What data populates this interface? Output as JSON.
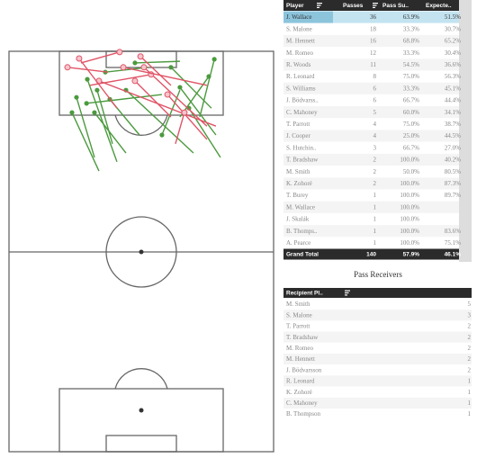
{
  "chart_data": {
    "type": "pass_map",
    "colors": {
      "success": "#4b9a3e",
      "fail": "#e05467"
    },
    "passes": [
      {
        "x": [
          77.6,
          72.1
        ],
        "y": [
          2.0,
          16.4
        ],
        "outcome": "success"
      },
      {
        "x": [
          36.4,
          52.7
        ],
        "y": [
          5.2,
          4.0
        ],
        "outcome": "success"
      },
      {
        "x": [
          29.6,
          40.8
        ],
        "y": [
          7.0,
          27.6
        ],
        "outcome": "success"
      },
      {
        "x": [
          23.8,
          34.0
        ],
        "y": [
          15.3,
          29.9
        ],
        "outcome": "success"
      },
      {
        "x": [
          25.5,
          32.3
        ],
        "y": [
          11.5,
          26.5
        ],
        "outcome": "success"
      },
      {
        "x": [
          33.3,
          39.1
        ],
        "y": [
          9.7,
          23.1
        ],
        "outcome": "success"
      },
      {
        "x": [
          38.1,
          49.3
        ],
        "y": [
          12.0,
          20.9
        ],
        "outcome": "success"
      },
      {
        "x": [
          68.0,
          79.9
        ],
        "y": [
          14.2,
          26.5
        ],
        "outcome": "success"
      },
      {
        "x": [
          61.2,
          76.5
        ],
        "y": [
          4.0,
          14.2
        ],
        "outcome": "success"
      },
      {
        "x": [
          47.6,
          64.6
        ],
        "y": [
          2.9,
          2.5
        ],
        "outcome": "success"
      },
      {
        "x": [
          29.3,
          57.8
        ],
        "y": [
          13.0,
          10.8
        ],
        "outcome": "success"
      },
      {
        "x": [
          57.8,
          64.6
        ],
        "y": [
          20.9,
          9.7
        ],
        "outcome": "success"
      },
      {
        "x": [
          75.5,
          64.6
        ],
        "y": [
          6.3,
          16.4
        ],
        "outcome": "success"
      },
      {
        "x": [
          32.3,
          44.2
        ],
        "y": [
          15.3,
          25.4
        ],
        "outcome": "success"
      },
      {
        "x": [
          44.2,
          69.7
        ],
        "y": [
          9.7,
          25.4
        ],
        "outcome": "success"
      },
      {
        "x": [
          64.6,
          78.2
        ],
        "y": [
          9.0,
          20.9
        ],
        "outcome": "success"
      },
      {
        "x": [
          41.8,
          27.2
        ],
        "y": [
          0.2,
          2.9
        ],
        "outcome": "fail"
      },
      {
        "x": [
          51.0,
          74.8
        ],
        "y": [
          4.0,
          18.7
        ],
        "outcome": "fail"
      },
      {
        "x": [
          53.7,
          30.6
        ],
        "y": [
          5.8,
          8.5
        ],
        "outcome": "fail"
      },
      {
        "x": [
          43.2,
          74.8
        ],
        "y": [
          4.0,
          8.5
        ],
        "outcome": "fail"
      },
      {
        "x": [
          34.0,
          78.2
        ],
        "y": [
          7.4,
          18.7
        ],
        "outcome": "fail"
      },
      {
        "x": [
          26.5,
          40.8
        ],
        "y": [
          1.8,
          14.2
        ],
        "outcome": "fail"
      },
      {
        "x": [
          49.7,
          61.2
        ],
        "y": [
          1.3,
          8.5
        ],
        "outcome": "fail"
      },
      {
        "x": [
          59.9,
          74.8
        ],
        "y": [
          10.8,
          22.0
        ],
        "outcome": "fail"
      },
      {
        "x": [
          22.1,
          37.4
        ],
        "y": [
          4.0,
          5.2
        ],
        "outcome": "fail"
      },
      {
        "x": [
          66.3,
          62.9
        ],
        "y": [
          15.3,
          23.1
        ],
        "outcome": "fail"
      },
      {
        "x": [
          47.6,
          61.2
        ],
        "y": [
          7.4,
          16.4
        ],
        "outcome": "fail"
      }
    ]
  },
  "players_table": {
    "columns": [
      "Player",
      "Passes",
      "Pass Su..",
      "Expecte.."
    ],
    "rows": [
      [
        "J. Wallace",
        "36",
        "63.9%",
        "51.5%"
      ],
      [
        "S. Malone",
        "18",
        "33.3%",
        "30.7%"
      ],
      [
        "M. Hennett",
        "16",
        "68.8%",
        "65.2%"
      ],
      [
        "M. Romeo",
        "12",
        "33.3%",
        "30.4%"
      ],
      [
        "R. Woods",
        "11",
        "54.5%",
        "36.6%"
      ],
      [
        "R. Leonard",
        "8",
        "75.0%",
        "56.3%"
      ],
      [
        "S. Williams",
        "6",
        "33.3%",
        "45.1%"
      ],
      [
        "J. Bödvarss..",
        "6",
        "66.7%",
        "44.4%"
      ],
      [
        "C. Mahoney",
        "5",
        "60.0%",
        "34.1%"
      ],
      [
        "T. Parrott",
        "4",
        "75.0%",
        "38.7%"
      ],
      [
        "J. Cooper",
        "4",
        "25.0%",
        "44.5%"
      ],
      [
        "S. Hutchin..",
        "3",
        "66.7%",
        "27.0%"
      ],
      [
        "T. Bradshaw",
        "2",
        "100.0%",
        "40.2%"
      ],
      [
        "M. Smith",
        "2",
        "50.0%",
        "80.5%"
      ],
      [
        "K. Zohoré",
        "2",
        "100.0%",
        "87.3%"
      ],
      [
        "T. Burey",
        "1",
        "100.0%",
        "89.7%"
      ],
      [
        "M. Wallace",
        "1",
        "100.0%",
        null
      ],
      [
        "J. Skalák",
        "1",
        "100.0%",
        null
      ],
      [
        "B. Thomps..",
        "1",
        "100.0%",
        "83.6%"
      ],
      [
        "A. Pearce",
        "1",
        "100.0%",
        "75.1%"
      ]
    ],
    "total": [
      "Grand Total",
      "140",
      "57.9%",
      "46.1%"
    ]
  },
  "receivers_table": {
    "title": "Pass Receivers",
    "columns": [
      "Recipient Pl.."
    ],
    "rows": [
      [
        "M. Smith",
        "5"
      ],
      [
        "S. Malone",
        "3"
      ],
      [
        "T. Parrott",
        "2"
      ],
      [
        "T. Bradshaw",
        "2"
      ],
      [
        "M. Romeo",
        "2"
      ],
      [
        "M. Hennett",
        "2"
      ],
      [
        "J. Bödvarsson",
        "2"
      ],
      [
        "R. Leonard",
        "1"
      ],
      [
        "K. Zohoré",
        "1"
      ],
      [
        "C. Mahoney",
        "1"
      ],
      [
        "B. Thompson",
        "1"
      ]
    ]
  }
}
